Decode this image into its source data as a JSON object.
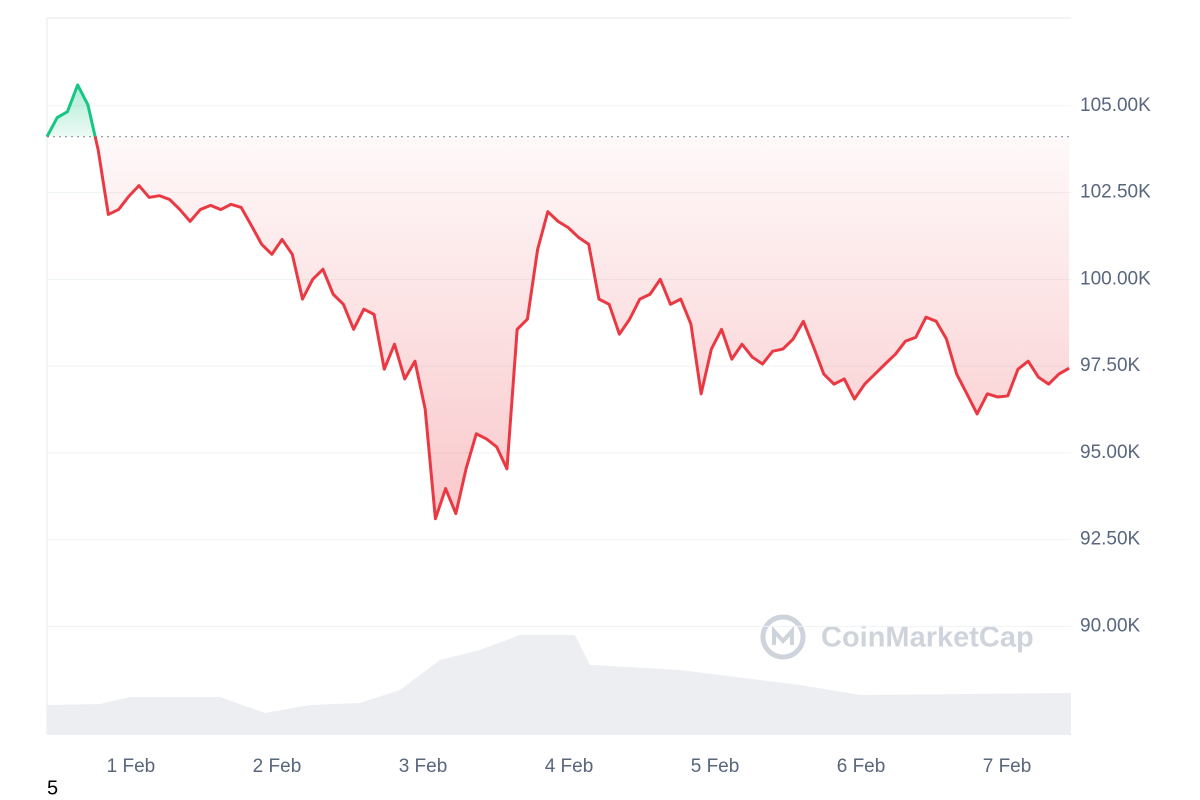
{
  "chart_data": {
    "type": "line",
    "x": [
      0.425,
      0.495,
      0.565,
      0.635,
      0.705,
      0.775,
      0.845,
      0.915,
      0.985,
      1.055,
      1.125,
      1.195,
      1.265,
      1.335,
      1.405,
      1.475,
      1.545,
      1.615,
      1.685,
      1.755,
      1.825,
      1.895,
      1.965,
      2.035,
      2.105,
      2.175,
      2.245,
      2.315,
      2.385,
      2.455,
      2.525,
      2.595,
      2.665,
      2.735,
      2.805,
      2.875,
      2.945,
      3.015,
      3.085,
      3.155,
      3.225,
      3.295,
      3.365,
      3.435,
      3.505,
      3.575,
      3.645,
      3.715,
      3.785,
      3.855,
      3.925,
      3.995,
      4.065,
      4.135,
      4.205,
      4.275,
      4.345,
      4.415,
      4.485,
      4.555,
      4.625,
      4.695,
      4.765,
      4.835,
      4.905,
      4.975,
      5.045,
      5.115,
      5.185,
      5.255,
      5.325,
      5.395,
      5.465,
      5.535,
      5.605,
      5.675,
      5.745,
      5.815,
      5.885,
      5.955,
      6.025,
      6.095,
      6.165,
      6.235,
      6.305,
      6.375,
      6.445,
      6.515,
      6.585,
      6.655,
      6.725,
      6.795,
      6.865,
      6.935,
      7.005,
      7.075,
      7.145,
      7.215,
      7.285,
      7.355,
      7.425
    ],
    "values": [
      104110,
      104660,
      104830,
      105600,
      105030,
      103740,
      101870,
      102010,
      102390,
      102700,
      102360,
      102410,
      102300,
      102010,
      101670,
      102010,
      102130,
      102010,
      102160,
      102070,
      101550,
      101010,
      100720,
      101150,
      100720,
      99430,
      100000,
      100290,
      99570,
      99280,
      98560,
      99140,
      98990,
      97410,
      98130,
      97130,
      97640,
      96260,
      93100,
      93970,
      93250,
      94540,
      95550,
      95400,
      95170,
      94540,
      98560,
      98850,
      100860,
      101950,
      101670,
      101490,
      101210,
      101010,
      99430,
      99280,
      98420,
      98850,
      99430,
      99570,
      100000,
      99280,
      99430,
      98710,
      96700,
      97990,
      98560,
      97700,
      98130,
      97760,
      97560,
      97930,
      97990,
      98280,
      98790,
      98050,
      97270,
      96980,
      97130,
      96550,
      96980,
      97270,
      97560,
      97840,
      98220,
      98330,
      98910,
      98790,
      98280,
      97270,
      96700,
      96120,
      96700,
      96610,
      96640,
      97410,
      97640,
      97180,
      96980,
      97270,
      97440
    ],
    "baseline": 104110,
    "colors": {
      "up": "#16c784",
      "down": "#ea3943",
      "volume": "#eceef2"
    },
    "volume": {
      "x": [
        0.425,
        0.788,
        0.993,
        1.61,
        1.918,
        2.226,
        2.568,
        2.842,
        3.116,
        3.39,
        3.664,
        4.041,
        4.144,
        4.76,
        5.034,
        5.582,
        5.993,
        7.438
      ],
      "values": [
        30,
        31,
        38,
        38,
        22,
        30,
        32,
        45,
        75,
        85,
        100,
        100,
        70,
        65,
        60,
        50,
        40,
        42
      ],
      "lim": [
        0,
        717
      ]
    },
    "xlim": [
      0.425,
      7.438
    ],
    "xticks": [
      {
        "value": 1,
        "label": "1 Feb"
      },
      {
        "value": 2,
        "label": "2 Feb"
      },
      {
        "value": 3,
        "label": "3 Feb"
      },
      {
        "value": 4,
        "label": "4 Feb"
      },
      {
        "value": 5,
        "label": "5 Feb"
      },
      {
        "value": 6,
        "label": "6 Feb"
      },
      {
        "value": 7,
        "label": "7 Feb"
      }
    ],
    "ylim": [
      86870,
      107530
    ],
    "yticks": [
      {
        "value": 90000,
        "label": "90.00K"
      },
      {
        "value": 92500,
        "label": "92.50K"
      },
      {
        "value": 95000,
        "label": "95.00K"
      },
      {
        "value": 97500,
        "label": "97.50K"
      },
      {
        "value": 100000,
        "label": "100.00K"
      },
      {
        "value": 102500,
        "label": "102.50K"
      },
      {
        "value": 105000,
        "label": "105.00K"
      }
    ],
    "grid": true,
    "watermark": "CoinMarketCap",
    "footnote": "5"
  }
}
